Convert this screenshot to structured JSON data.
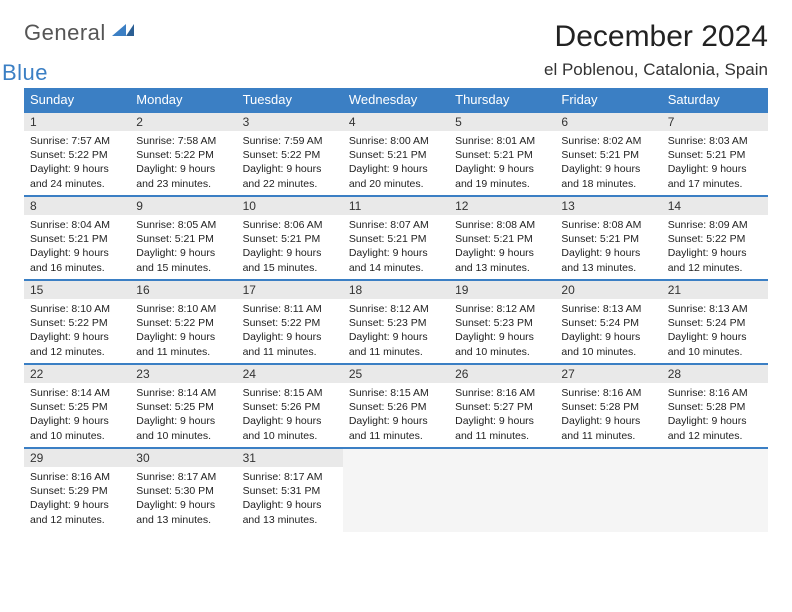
{
  "brand": {
    "part1": "General",
    "part2": "Blue"
  },
  "title": "December 2024",
  "location": "el Poblenou, Catalonia, Spain",
  "colors": {
    "header_bg": "#3b7fc4",
    "daynum_bg": "#e9e9e9",
    "border": "#3b7fc4",
    "text": "#222222",
    "brand_gray": "#555555",
    "brand_blue": "#3b7fc4"
  },
  "fonts": {
    "title_size": 30,
    "location_size": 17,
    "th_size": 13,
    "cell_size": 10.5
  },
  "weekdays": [
    "Sunday",
    "Monday",
    "Tuesday",
    "Wednesday",
    "Thursday",
    "Friday",
    "Saturday"
  ],
  "days": [
    {
      "n": 1,
      "sunrise": "7:57 AM",
      "sunset": "5:22 PM",
      "daylight": "9 hours and 24 minutes."
    },
    {
      "n": 2,
      "sunrise": "7:58 AM",
      "sunset": "5:22 PM",
      "daylight": "9 hours and 23 minutes."
    },
    {
      "n": 3,
      "sunrise": "7:59 AM",
      "sunset": "5:22 PM",
      "daylight": "9 hours and 22 minutes."
    },
    {
      "n": 4,
      "sunrise": "8:00 AM",
      "sunset": "5:21 PM",
      "daylight": "9 hours and 20 minutes."
    },
    {
      "n": 5,
      "sunrise": "8:01 AM",
      "sunset": "5:21 PM",
      "daylight": "9 hours and 19 minutes."
    },
    {
      "n": 6,
      "sunrise": "8:02 AM",
      "sunset": "5:21 PM",
      "daylight": "9 hours and 18 minutes."
    },
    {
      "n": 7,
      "sunrise": "8:03 AM",
      "sunset": "5:21 PM",
      "daylight": "9 hours and 17 minutes."
    },
    {
      "n": 8,
      "sunrise": "8:04 AM",
      "sunset": "5:21 PM",
      "daylight": "9 hours and 16 minutes."
    },
    {
      "n": 9,
      "sunrise": "8:05 AM",
      "sunset": "5:21 PM",
      "daylight": "9 hours and 15 minutes."
    },
    {
      "n": 10,
      "sunrise": "8:06 AM",
      "sunset": "5:21 PM",
      "daylight": "9 hours and 15 minutes."
    },
    {
      "n": 11,
      "sunrise": "8:07 AM",
      "sunset": "5:21 PM",
      "daylight": "9 hours and 14 minutes."
    },
    {
      "n": 12,
      "sunrise": "8:08 AM",
      "sunset": "5:21 PM",
      "daylight": "9 hours and 13 minutes."
    },
    {
      "n": 13,
      "sunrise": "8:08 AM",
      "sunset": "5:21 PM",
      "daylight": "9 hours and 13 minutes."
    },
    {
      "n": 14,
      "sunrise": "8:09 AM",
      "sunset": "5:22 PM",
      "daylight": "9 hours and 12 minutes."
    },
    {
      "n": 15,
      "sunrise": "8:10 AM",
      "sunset": "5:22 PM",
      "daylight": "9 hours and 12 minutes."
    },
    {
      "n": 16,
      "sunrise": "8:10 AM",
      "sunset": "5:22 PM",
      "daylight": "9 hours and 11 minutes."
    },
    {
      "n": 17,
      "sunrise": "8:11 AM",
      "sunset": "5:22 PM",
      "daylight": "9 hours and 11 minutes."
    },
    {
      "n": 18,
      "sunrise": "8:12 AM",
      "sunset": "5:23 PM",
      "daylight": "9 hours and 11 minutes."
    },
    {
      "n": 19,
      "sunrise": "8:12 AM",
      "sunset": "5:23 PM",
      "daylight": "9 hours and 10 minutes."
    },
    {
      "n": 20,
      "sunrise": "8:13 AM",
      "sunset": "5:24 PM",
      "daylight": "9 hours and 10 minutes."
    },
    {
      "n": 21,
      "sunrise": "8:13 AM",
      "sunset": "5:24 PM",
      "daylight": "9 hours and 10 minutes."
    },
    {
      "n": 22,
      "sunrise": "8:14 AM",
      "sunset": "5:25 PM",
      "daylight": "9 hours and 10 minutes."
    },
    {
      "n": 23,
      "sunrise": "8:14 AM",
      "sunset": "5:25 PM",
      "daylight": "9 hours and 10 minutes."
    },
    {
      "n": 24,
      "sunrise": "8:15 AM",
      "sunset": "5:26 PM",
      "daylight": "9 hours and 10 minutes."
    },
    {
      "n": 25,
      "sunrise": "8:15 AM",
      "sunset": "5:26 PM",
      "daylight": "9 hours and 11 minutes."
    },
    {
      "n": 26,
      "sunrise": "8:16 AM",
      "sunset": "5:27 PM",
      "daylight": "9 hours and 11 minutes."
    },
    {
      "n": 27,
      "sunrise": "8:16 AM",
      "sunset": "5:28 PM",
      "daylight": "9 hours and 11 minutes."
    },
    {
      "n": 28,
      "sunrise": "8:16 AM",
      "sunset": "5:28 PM",
      "daylight": "9 hours and 12 minutes."
    },
    {
      "n": 29,
      "sunrise": "8:16 AM",
      "sunset": "5:29 PM",
      "daylight": "9 hours and 12 minutes."
    },
    {
      "n": 30,
      "sunrise": "8:17 AM",
      "sunset": "5:30 PM",
      "daylight": "9 hours and 13 minutes."
    },
    {
      "n": 31,
      "sunrise": "8:17 AM",
      "sunset": "5:31 PM",
      "daylight": "9 hours and 13 minutes."
    }
  ],
  "labels": {
    "sunrise": "Sunrise:",
    "sunset": "Sunset:",
    "daylight": "Daylight:"
  }
}
